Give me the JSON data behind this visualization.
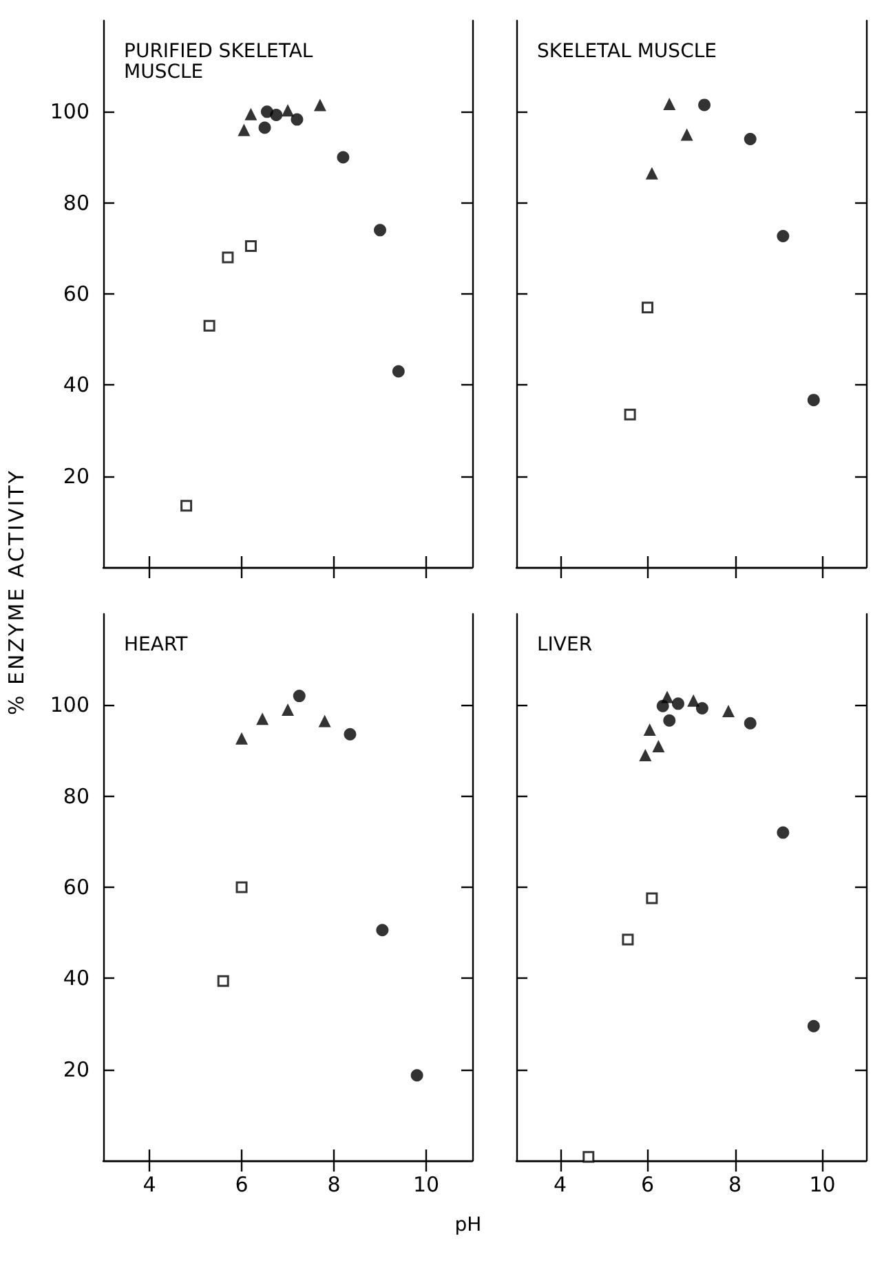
{
  "chart_data": [
    {
      "type": "scatter",
      "title": "PURIFIED SKELETAL MUSCLE",
      "ylabel": "% ENZYME ACTIVITY",
      "xlim": [
        3,
        11
      ],
      "ylim": [
        0,
        120
      ],
      "xticks": [
        4,
        6,
        8,
        10
      ],
      "yticks": [
        20,
        40,
        60,
        80,
        100
      ],
      "tick_labels": "y",
      "series": [
        {
          "marker": "square",
          "color": "#000000",
          "x": [
            4.8,
            5.3,
            5.7,
            6.2
          ],
          "values": [
            13.5,
            53,
            68,
            70.5
          ]
        },
        {
          "marker": "triangle",
          "color": "#000000",
          "x": [
            6.05,
            6.2,
            7.0,
            7.7
          ],
          "values": [
            96,
            99.5,
            100.3,
            101.5
          ]
        },
        {
          "marker": "circle",
          "color": "#000000",
          "x": [
            6.5,
            6.55,
            6.75,
            7.2,
            8.2,
            9.0,
            9.4
          ],
          "values": [
            96.5,
            100,
            99.3,
            98.3,
            90,
            74,
            43
          ]
        }
      ]
    },
    {
      "type": "scatter",
      "title": "SKELETAL MUSCLE",
      "xlim": [
        3,
        11
      ],
      "ylim": [
        0,
        120
      ],
      "xticks": [
        4,
        6,
        8,
        10
      ],
      "yticks": [
        20,
        40,
        60,
        80,
        100
      ],
      "tick_labels": false,
      "series": [
        {
          "marker": "square",
          "color": "#000000",
          "x": [
            5.6,
            6.0
          ],
          "values": [
            33.5,
            57
          ]
        },
        {
          "marker": "triangle",
          "color": "#000000",
          "x": [
            6.1,
            6.5,
            6.9
          ],
          "values": [
            86.5,
            101.7,
            95
          ]
        },
        {
          "marker": "circle",
          "color": "#000000",
          "x": [
            7.3,
            8.35,
            9.1,
            9.8
          ],
          "values": [
            101.5,
            94,
            72.7,
            36.7
          ]
        }
      ]
    },
    {
      "type": "scatter",
      "title": "HEART",
      "xlabel": "pH",
      "xlim": [
        3,
        11
      ],
      "ylim": [
        0,
        120
      ],
      "xticks": [
        4,
        6,
        8,
        10
      ],
      "yticks": [
        20,
        40,
        60,
        80,
        100
      ],
      "series": [
        {
          "marker": "square",
          "color": "#000000",
          "x": [
            5.6,
            6.0
          ],
          "values": [
            39.4,
            60
          ]
        },
        {
          "marker": "triangle",
          "color": "#000000",
          "x": [
            6.0,
            6.45,
            7.0,
            7.8
          ],
          "values": [
            92.7,
            97,
            99,
            96.5
          ]
        },
        {
          "marker": "circle",
          "color": "#000000",
          "x": [
            7.25,
            8.35,
            9.05,
            9.8
          ],
          "values": [
            102,
            93.6,
            50.6,
            18.7
          ]
        }
      ]
    },
    {
      "type": "scatter",
      "title": "LIVER",
      "xlim": [
        3,
        11
      ],
      "ylim": [
        0,
        120
      ],
      "xticks": [
        4,
        6,
        8,
        10
      ],
      "yticks": [
        20,
        40,
        60,
        80,
        100
      ],
      "tick_labels": "x",
      "series": [
        {
          "marker": "square",
          "color": "#000000",
          "x": [
            4.65,
            5.55,
            6.1
          ],
          "values": [
            0.8,
            48.5,
            57.6
          ]
        },
        {
          "marker": "triangle",
          "color": "#000000",
          "x": [
            5.95,
            6.05,
            6.25,
            6.45,
            7.05,
            7.85
          ],
          "values": [
            89,
            94.6,
            91,
            101.8,
            101,
            98.7
          ]
        },
        {
          "marker": "circle",
          "color": "#000000",
          "x": [
            6.35,
            6.5,
            6.7,
            7.25,
            8.35,
            9.1,
            9.8
          ],
          "values": [
            99.8,
            96.6,
            100.3,
            99.3,
            96,
            72,
            29.5
          ]
        }
      ]
    }
  ]
}
